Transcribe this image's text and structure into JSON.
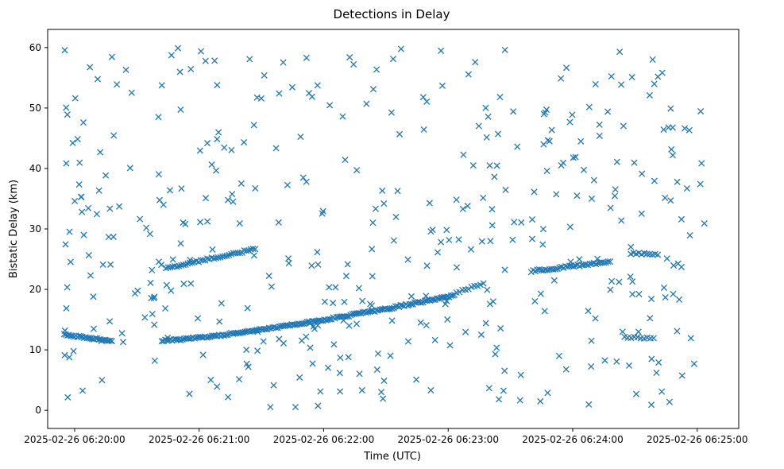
{
  "chart_data": {
    "type": "scatter",
    "title": "Detections in Delay",
    "xlabel": "Time (UTC)",
    "ylabel": "Bistatic Delay (km)",
    "marker": "x",
    "color": "#1f77b4",
    "grid": false,
    "x_unit": "seconds after 2025-02-26 06:20:00 UTC",
    "xlim": [
      -13,
      320
    ],
    "ylim": [
      -3,
      63
    ],
    "x_ticks": [
      0,
      60,
      120,
      180,
      240,
      300
    ],
    "x_tick_labels": [
      "2025-02-26 06:20:00",
      "2025-02-26 06:21:00",
      "2025-02-26 06:22:00",
      "2025-02-26 06:23:00",
      "2025-02-26 06:24:00",
      "2025-02-26 06:25:00"
    ],
    "y_ticks": [
      0,
      10,
      20,
      30,
      40,
      50,
      60
    ],
    "y_tick_labels": [
      "0",
      "10",
      "20",
      "30",
      "40",
      "50",
      "60"
    ],
    "tracks": [
      {
        "x_start": -5,
        "x_end": 18,
        "y_start": 12.5,
        "y_end": 11.5,
        "count": 30
      },
      {
        "x_start": 44,
        "x_end": 87,
        "y_start": 23.5,
        "y_end": 26.7,
        "count": 42
      },
      {
        "x_start": 42,
        "x_end": 183,
        "y_start": 11.5,
        "y_end": 19,
        "count": 170,
        "curve": 1.3
      },
      {
        "x_start": 184,
        "x_end": 197,
        "y_start": 19.5,
        "y_end": 21,
        "count": 10
      },
      {
        "x_start": 220,
        "x_end": 258,
        "y_start": 23,
        "y_end": 24.6,
        "count": 40
      },
      {
        "x_start": 268,
        "x_end": 281,
        "y_start": 26,
        "y_end": 25.7,
        "count": 11
      },
      {
        "x_start": 265,
        "x_end": 279,
        "y_start": 12,
        "y_end": 12,
        "count": 10
      }
    ],
    "clutter": {
      "count": 420,
      "x_range": [
        -5,
        304
      ],
      "y_range": [
        0.5,
        60
      ]
    }
  }
}
